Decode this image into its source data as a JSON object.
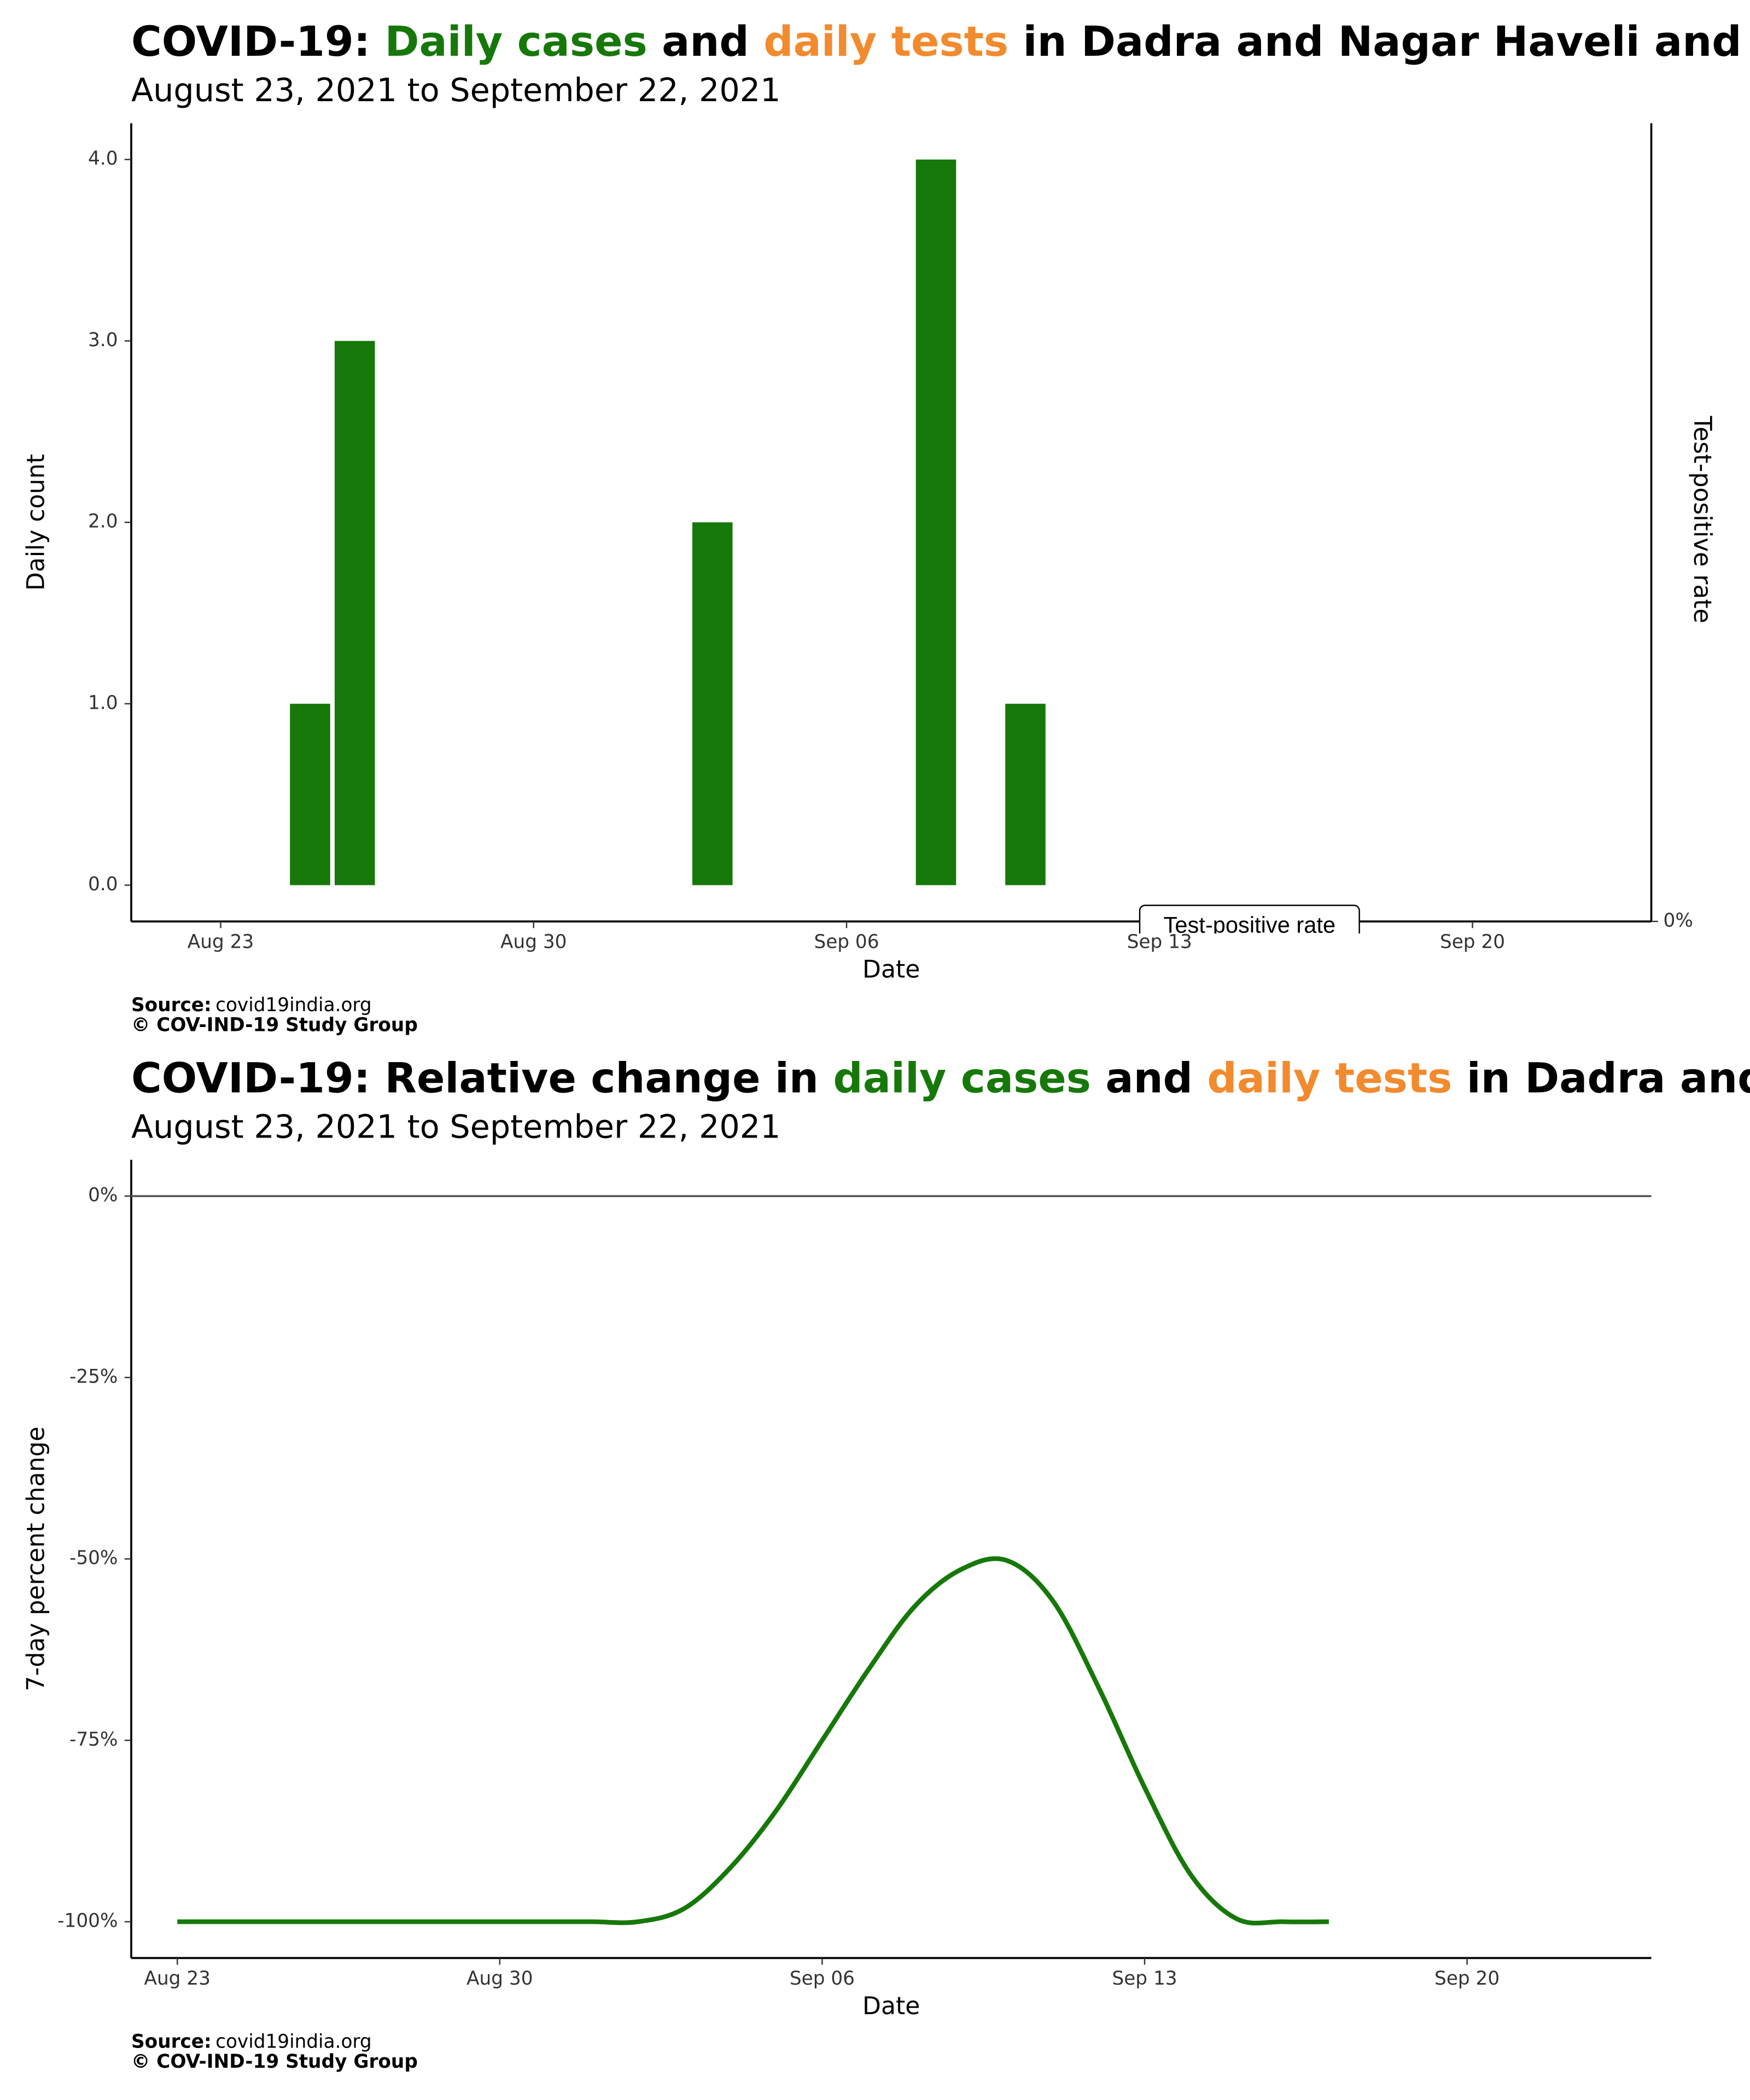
{
  "chart_data": [
    {
      "type": "bar",
      "title_parts": [
        {
          "text": "COVID-19: ",
          "color": "#000000"
        },
        {
          "text": "Daily cases",
          "color": "#17780a"
        },
        {
          "text": " and ",
          "color": "#000000"
        },
        {
          "text": "daily tests",
          "color": "#f28a2e"
        },
        {
          "text": " in Dadra and Nagar Haveli and Daman and Diu",
          "color": "#000000"
        }
      ],
      "subtitle": "August 23, 2021 to September 22, 2021",
      "xlabel": "Date",
      "ylabel": "Daily count",
      "y2label": "Test-positive rate",
      "legend_title": "Test-positive rate",
      "x": [
        "Aug 25",
        "Aug 26",
        "Sep 03",
        "Sep 08",
        "Sep 10"
      ],
      "values": [
        1,
        3,
        2,
        4,
        1
      ],
      "color": "#17780a",
      "xlim": [
        "Aug 21",
        "Sep 24"
      ],
      "xticks": [
        "Aug 23",
        "Aug 30",
        "Sep 06",
        "Sep 13",
        "Sep 20"
      ],
      "ylim": [
        -0.2,
        4.2
      ],
      "yticks": [
        {
          "value": 0,
          "label": "0.0"
        },
        {
          "value": 1,
          "label": "1.0"
        },
        {
          "value": 2,
          "label": "2.0"
        },
        {
          "value": 3,
          "label": "3.0"
        },
        {
          "value": 4,
          "label": "4.0"
        }
      ],
      "y2lim": [
        0,
        1
      ],
      "y2ticks": [
        {
          "value": 0,
          "label": "0%"
        }
      ],
      "source_label": "Source:",
      "source": "covid19india.org",
      "copyright": "© COV-IND-19 Study Group"
    },
    {
      "type": "line",
      "title_parts": [
        {
          "text": "COVID-19: Relative change in ",
          "color": "#000000"
        },
        {
          "text": "daily cases",
          "color": "#17780a"
        },
        {
          "text": " and ",
          "color": "#000000"
        },
        {
          "text": "daily tests",
          "color": "#f28a2e"
        },
        {
          "text": " in Dadra and Nagar Haveli and Daman and Diu",
          "color": "#000000"
        }
      ],
      "subtitle": "August 23, 2021 to September 22, 2021",
      "xlabel": "Date",
      "ylabel": "7-day percent change",
      "x": [
        "Aug 23",
        "Aug 24",
        "Aug 25",
        "Aug 26",
        "Aug 27",
        "Aug 28",
        "Aug 29",
        "Aug 30",
        "Aug 31",
        "Sep 01",
        "Sep 02",
        "Sep 03",
        "Sep 04",
        "Sep 05",
        "Sep 06",
        "Sep 07",
        "Sep 08",
        "Sep 09",
        "Sep 10",
        "Sep 11",
        "Sep 12",
        "Sep 13",
        "Sep 14",
        "Sep 15",
        "Sep 16",
        "Sep 17"
      ],
      "values": [
        -100,
        -100,
        -100,
        -100,
        -100,
        -100,
        -100,
        -100,
        -100,
        -100,
        -100,
        -98.2,
        -92.6,
        -84.7,
        -75,
        -65.3,
        -56.6,
        -51.5,
        -50.2,
        -55.7,
        -67.7,
        -81.5,
        -93.5,
        -99.6,
        -100,
        -100
      ],
      "color": "#17780a",
      "hline": 0,
      "xlim": [
        "Aug 22",
        "Sep 24"
      ],
      "xticks": [
        "Aug 23",
        "Aug 30",
        "Sep 06",
        "Sep 13",
        "Sep 20"
      ],
      "ylim": [
        -105,
        5
      ],
      "yticks": [
        {
          "value": 0,
          "label": "0%"
        },
        {
          "value": -25,
          "label": "-25%"
        },
        {
          "value": -50,
          "label": "-50%"
        },
        {
          "value": -75,
          "label": "-75%"
        },
        {
          "value": -100,
          "label": "-100%"
        }
      ],
      "source_label": "Source:",
      "source": "covid19india.org",
      "copyright": "© COV-IND-19 Study Group"
    }
  ]
}
